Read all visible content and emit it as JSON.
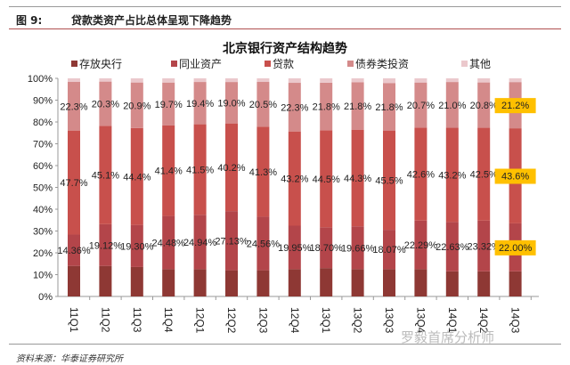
{
  "figure": {
    "label": "图 9:",
    "caption": "贷款类资产占比总体呈现下降趋势",
    "source": "资料来源：华泰证券研究所",
    "watermark": "罗毅首席分析师"
  },
  "chart_data": {
    "type": "bar",
    "stacked": true,
    "title": "北京银行资产结构趋势",
    "categories": [
      "11Q1",
      "11Q2",
      "11Q3",
      "11Q4",
      "12Q1",
      "12Q2",
      "12Q3",
      "12Q4",
      "13Q1",
      "13Q2",
      "13Q3",
      "13Q4",
      "14Q1",
      "14Q2",
      "14Q3"
    ],
    "ylim": [
      0,
      100
    ],
    "yticks": [
      "0%",
      "10%",
      "20%",
      "30%",
      "40%",
      "50%",
      "60%",
      "70%",
      "80%",
      "90%",
      "100%"
    ],
    "legend_position": "top",
    "series": [
      {
        "name": "存放央行",
        "color": "#8e3834",
        "values": [
          14,
          14,
          13.5,
          12.5,
          12.5,
          12,
          12,
          12.5,
          13,
          12.5,
          12.5,
          12.5,
          11.5,
          11.5,
          11.5
        ],
        "labels": []
      },
      {
        "name": "同业资产",
        "color": "#b3454a",
        "values": [
          14.36,
          19.12,
          19.3,
          24.48,
          24.94,
          27.13,
          24.56,
          19.95,
          18.7,
          19.66,
          18.07,
          22.29,
          22.63,
          23.32,
          22.0
        ],
        "labels": [
          "14.36%",
          "19.12%",
          "19.30%",
          "24.48%",
          "24.94%",
          "27.13%",
          "24.56%",
          "19.95%",
          "18.70%",
          "19.66%",
          "18.07%",
          "22.29%",
          "22.63%",
          "23.32%",
          "22.00%"
        ]
      },
      {
        "name": "贷款",
        "color": "#c8504c",
        "values": [
          47.7,
          45.1,
          44.4,
          41.4,
          41.5,
          40.2,
          41.3,
          43.2,
          44.5,
          44.3,
          45.5,
          42.6,
          43.2,
          42.5,
          43.6
        ],
        "labels": [
          "47.7%",
          "45.1%",
          "44.4%",
          "41.4%",
          "41.5%",
          "40.2%",
          "41.3%",
          "43.2%",
          "44.5%",
          "44.3%",
          "45.5%",
          "42.6%",
          "43.2%",
          "42.5%",
          "43.6%"
        ]
      },
      {
        "name": "债券类投资",
        "color": "#d48a8a",
        "values": [
          22.3,
          20.3,
          20.9,
          19.7,
          19.4,
          19.0,
          20.5,
          22.3,
          21.8,
          21.8,
          21.8,
          20.7,
          21.0,
          20.8,
          21.2
        ],
        "labels": [
          "22.3%",
          "20.3%",
          "20.9%",
          "19.7%",
          "19.4%",
          "19.0%",
          "20.5%",
          "22.3%",
          "21.8%",
          "21.8%",
          "21.8%",
          "20.7%",
          "21.0%",
          "20.8%",
          "21.2%"
        ]
      },
      {
        "name": "其他",
        "color": "#ebc8cc",
        "values": [
          1.64,
          1.48,
          1.9,
          1.92,
          1.66,
          1.67,
          1.64,
          2.05,
          2.0,
          1.74,
          2.13,
          1.91,
          1.67,
          1.88,
          1.7
        ],
        "labels": []
      }
    ],
    "highlight_color": "#ffc000",
    "highlighted_category": "14Q3"
  }
}
